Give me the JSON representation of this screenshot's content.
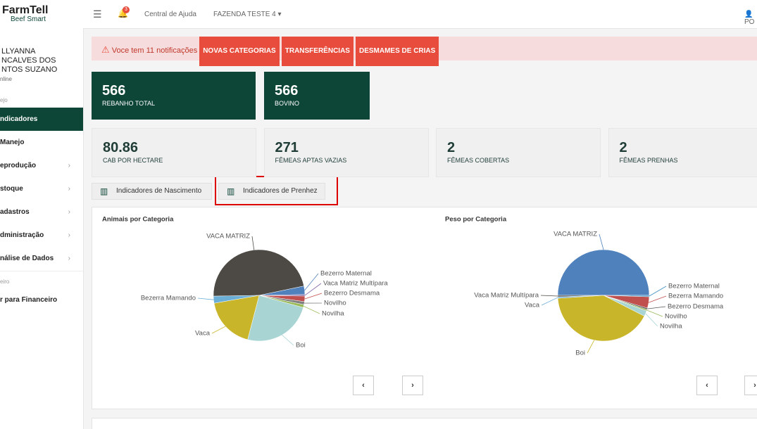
{
  "header": {
    "logo": "FarmTell",
    "logo_sub": "Beef Smart",
    "badge": "3",
    "help": "Central de Ajuda",
    "farm": "FAZENDA TESTE 4",
    "user": "PO"
  },
  "sidebar": {
    "user_lines": [
      "LLYANNA",
      "NCALVES DOS",
      "NTOS SUZANO"
    ],
    "status": "nline",
    "section1": "ejo",
    "items": [
      "ndicadores",
      "Manejo",
      "eprodução",
      "stoque",
      "adastros",
      "dministração",
      "nálise de Dados"
    ],
    "section2": "eiro",
    "items2": [
      "r para Financeiro"
    ]
  },
  "alert": {
    "text": "Voce tem 11 notificações",
    "buttons": [
      "NOVAS CATEGORIAS",
      "TRANSFERÊNCIAS",
      "DESMAMES DE CRIAS"
    ]
  },
  "cards_dark": [
    {
      "value": "566",
      "label": "REBANHO TOTAL"
    },
    {
      "value": "566",
      "label": "BOVINO"
    }
  ],
  "cards_light": [
    {
      "value": "80.86",
      "label": "CAB POR HECTARE"
    },
    {
      "value": "271",
      "label": "FÊMEAS APTAS VAZIAS"
    },
    {
      "value": "2",
      "label": "FÊMEAS COBERTAS"
    },
    {
      "value": "2",
      "label": "FÊMEAS PRENHAS"
    }
  ],
  "tabs": [
    "Indicadores de Nascimento",
    "Indicadores de Prenhez"
  ],
  "chart_data": [
    {
      "type": "pie",
      "title": "Animais por Categoria",
      "categories": [
        "VACA MATRIZ",
        "Bezerro Maternal",
        "Vaca Matriz Multípara",
        "Bezerro Desmama",
        "Novilho",
        "Novilha",
        "Boi",
        "Vaca",
        "Bezerra Mamando"
      ],
      "values": [
        266,
        17,
        3,
        11,
        6,
        6,
        140,
        103,
        14
      ],
      "colors": [
        "#4d4a45",
        "#4f81bd",
        "#8064a2",
        "#c0504d",
        "#7f7f7f",
        "#9bbb59",
        "#a8d5d3",
        "#c9b52a",
        "#6baed6"
      ]
    },
    {
      "type": "pie",
      "title": "Peso por Categoria",
      "categories": [
        "VACA MATRIZ",
        "Bezerro Maternal",
        "Bezerra Mamando",
        "Bezerro Desmama",
        "Novilho",
        "Novilha",
        "Boi",
        "Vaca",
        "Vaca Matriz Multípara"
      ],
      "values": [
        50,
        0.5,
        4,
        0.5,
        0.5,
        2,
        41.5,
        0.5,
        0.5
      ],
      "colors": [
        "#4f81bd",
        "#3b8ec2",
        "#c0504d",
        "#555555",
        "#9bbb59",
        "#a8d5d3",
        "#c9b52a",
        "#6baed6",
        "#4d4a45"
      ]
    }
  ]
}
